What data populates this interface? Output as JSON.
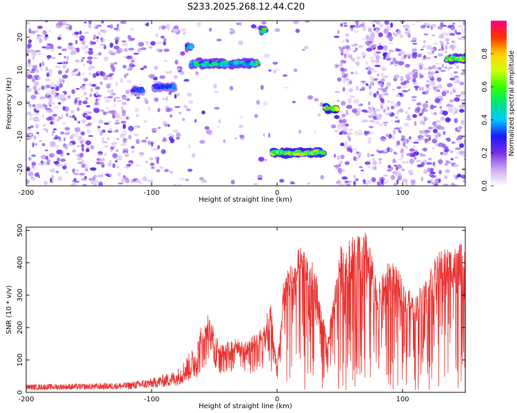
{
  "title": "S233.2025.268.12.44.C20",
  "chart_data": [
    {
      "type": "heatmap",
      "xlabel": "Height of straight line (km)",
      "ylabel": "Frequency (Hz)",
      "xlim": [
        -200,
        150
      ],
      "ylim": [
        -25,
        25
      ],
      "xticks": [
        -200,
        -100,
        0,
        100
      ],
      "yticks": [
        -20,
        -10,
        0,
        10,
        20
      ],
      "colorbar": {
        "label": "Normalized spectral amplitude",
        "range": [
          0,
          1
        ],
        "ticks": [
          0.0,
          0.2,
          0.4,
          0.6,
          0.8
        ]
      },
      "features": [
        {
          "x": [
            -115,
            -107
          ],
          "y": 4,
          "amplitude": 0.35
        },
        {
          "x": [
            -98,
            -82
          ],
          "y": 5,
          "amplitude": 0.4
        },
        {
          "x": [
            -72,
            -68
          ],
          "y": 17,
          "amplitude": 0.5
        },
        {
          "x": [
            -68,
            -15
          ],
          "y": 12,
          "amplitude": 0.55
        },
        {
          "x": [
            -13,
            -10
          ],
          "y": 22,
          "amplitude": 0.6
        },
        {
          "x": [
            -4,
            37
          ],
          "y": -15,
          "amplitude": 0.75
        },
        {
          "x": [
            38,
            48
          ],
          "y": -1.5,
          "amplitude": 0.85
        },
        {
          "x": [
            135,
            150
          ],
          "y": 13.5,
          "amplitude": 0.7
        }
      ]
    },
    {
      "type": "line",
      "xlabel": "Height of straight line (km)",
      "ylabel": "SNR (10 * v/v)",
      "xlim": [
        -200,
        150
      ],
      "ylim": [
        0,
        510
      ],
      "xticks": [
        -200,
        -100,
        0,
        100
      ],
      "yticks": [
        0,
        100,
        200,
        300,
        400,
        500
      ],
      "color": "#e8302e",
      "envelope": {
        "x": [
          -200,
          -150,
          -120,
          -100,
          -80,
          -65,
          -55,
          -45,
          -35,
          -25,
          -15,
          -5,
          0,
          5,
          10,
          20,
          30,
          40,
          50,
          60,
          70,
          75,
          80,
          90,
          100,
          110,
          120,
          130,
          140,
          150
        ],
        "y": [
          20,
          22,
          25,
          35,
          55,
          120,
          230,
          140,
          160,
          150,
          180,
          260,
          80,
          330,
          380,
          440,
          370,
          150,
          430,
          460,
          480,
          420,
          310,
          400,
          340,
          280,
          360,
          420,
          430,
          440
        ]
      }
    }
  ]
}
